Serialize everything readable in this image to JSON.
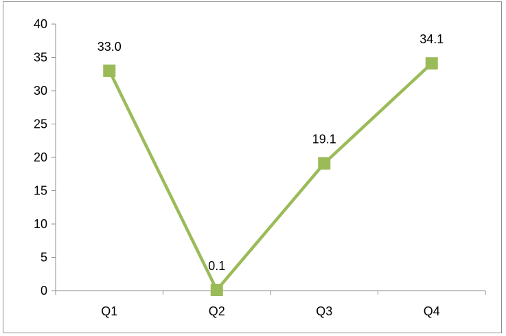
{
  "chart_data": {
    "type": "line",
    "title": "",
    "xlabel": "",
    "ylabel": "",
    "categories": [
      "Q1",
      "Q2",
      "Q3",
      "Q4"
    ],
    "series": [
      {
        "values": [
          33.0,
          0.1,
          19.1,
          34.1
        ],
        "labels": [
          "33.0",
          "0.1",
          "19.1",
          "34.1"
        ],
        "color": "#9bbb59",
        "marker": "square"
      }
    ],
    "ylim": [
      0,
      40
    ],
    "yticks": [
      0,
      5,
      10,
      15,
      20,
      25,
      30,
      35,
      40
    ],
    "grid": false,
    "legend": "none"
  }
}
